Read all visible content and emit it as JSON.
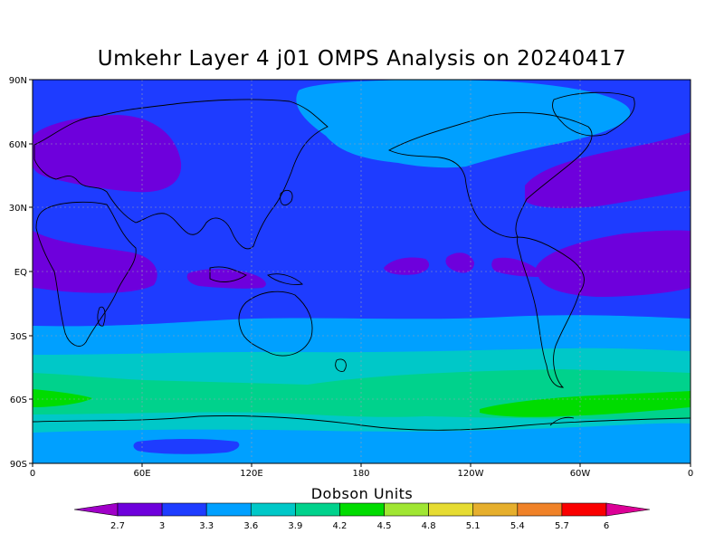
{
  "title": "Umkehr Layer 4 j01 OMPS Analysis on 20240417",
  "lat_labels": [
    "90N",
    "60N",
    "30N",
    "EQ",
    "30S",
    "60S",
    "90S"
  ],
  "lon_labels": [
    "0",
    "60E",
    "120E",
    "180",
    "120W",
    "60W",
    "0"
  ],
  "colorbar": {
    "title": "Dobson Units",
    "levels": [
      "2.7",
      "3",
      "3.3",
      "3.6",
      "3.9",
      "4.2",
      "4.5",
      "4.8",
      "5.1",
      "5.4",
      "5.7",
      "6"
    ],
    "colors": [
      "#a000c8",
      "#6e00dc",
      "#1e3cff",
      "#00a0ff",
      "#00c8c8",
      "#00d28c",
      "#00dc00",
      "#a0e632",
      "#e6dc32",
      "#e6af2d",
      "#f08228",
      "#fa0000",
      "#dc0096"
    ]
  }
}
